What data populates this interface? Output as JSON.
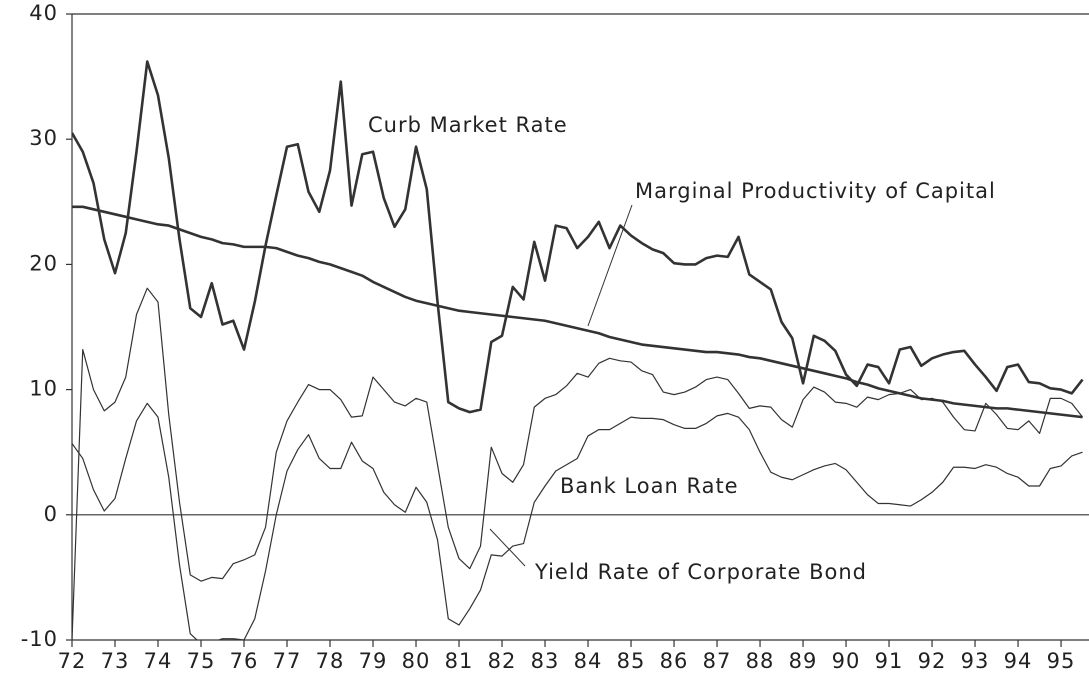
{
  "chart_data": {
    "type": "line",
    "x": [
      72,
      72.25,
      72.5,
      72.75,
      73,
      73.25,
      73.5,
      73.75,
      74,
      74.25,
      74.5,
      74.75,
      75,
      75.25,
      75.5,
      75.75,
      76,
      76.25,
      76.5,
      76.75,
      77,
      77.25,
      77.5,
      77.75,
      78,
      78.25,
      78.5,
      78.75,
      79,
      79.25,
      79.5,
      79.75,
      80,
      80.25,
      80.5,
      80.75,
      81,
      81.25,
      81.5,
      81.75,
      82,
      82.25,
      82.5,
      82.75,
      83,
      83.25,
      83.5,
      83.75,
      84,
      84.25,
      84.5,
      84.75,
      85,
      85.25,
      85.5,
      85.75,
      86,
      86.25,
      86.5,
      86.75,
      87,
      87.25,
      87.5,
      87.75,
      88,
      88.25,
      88.5,
      88.75,
      89,
      89.25,
      89.5,
      89.75,
      90,
      90.25,
      90.5,
      90.75,
      91,
      91.25,
      91.5,
      91.75,
      92,
      92.25,
      92.5,
      92.75,
      93,
      93.25,
      93.5,
      93.75,
      94,
      94.25,
      94.5,
      94.75,
      95,
      95.25,
      95.5
    ],
    "series": [
      {
        "name": "Curb Market Rate",
        "color": "#333333",
        "values": [
          30.5,
          29,
          26.5,
          22,
          19.3,
          22.5,
          29,
          36.2,
          33.5,
          28.5,
          22,
          16.5,
          15.8,
          18.5,
          15.2,
          15.5,
          13.2,
          17,
          21.5,
          25.5,
          29.4,
          29.6,
          25.8,
          24.2,
          27.5,
          34.6,
          24.7,
          28.8,
          29,
          25.3,
          23,
          24.4,
          29.4,
          26,
          17,
          9,
          8.5,
          8.2,
          8.4,
          13.8,
          14.3,
          18.2,
          17.2,
          21.8,
          18.7,
          23.1,
          22.9,
          21.3,
          22.2,
          23.4,
          21.3,
          23.1,
          22.3,
          21.7,
          21.2,
          20.9,
          20.1,
          20,
          20,
          20.5,
          20.7,
          20.6,
          22.2,
          19.2,
          18.6,
          18,
          15.4,
          14.1,
          10.5,
          14.3,
          13.9,
          13.1,
          11.2,
          10.3,
          12,
          11.8,
          10.5,
          13.2,
          13.4,
          11.9,
          12.5,
          12.8,
          13,
          13.1,
          12,
          11,
          9.9,
          11.8,
          12,
          10.6,
          10.5,
          10.1,
          10,
          9.7,
          10.8
        ]
      },
      {
        "name": "Marginal Productivity of Capital",
        "color": "#333333",
        "values": [
          24.6,
          24.6,
          24.4,
          24.2,
          24,
          23.8,
          23.6,
          23.4,
          23.2,
          23.1,
          22.8,
          22.5,
          22.2,
          22,
          21.7,
          21.6,
          21.4,
          21.4,
          21.4,
          21.3,
          21,
          20.7,
          20.5,
          20.2,
          20,
          19.7,
          19.4,
          19.1,
          18.6,
          18.2,
          17.8,
          17.4,
          17.1,
          16.9,
          16.7,
          16.5,
          16.3,
          16.2,
          16.1,
          16,
          15.9,
          15.8,
          15.7,
          15.6,
          15.5,
          15.3,
          15.1,
          14.9,
          14.7,
          14.5,
          14.2,
          14,
          13.8,
          13.6,
          13.5,
          13.4,
          13.3,
          13.2,
          13.1,
          13,
          13,
          12.9,
          12.8,
          12.6,
          12.5,
          12.3,
          12.1,
          11.9,
          11.7,
          11.5,
          11.3,
          11.1,
          10.9,
          10.6,
          10.4,
          10.1,
          9.9,
          9.7,
          9.5,
          9.3,
          9.2,
          9.1,
          8.9,
          8.8,
          8.7,
          8.6,
          8.5,
          8.5,
          8.4,
          8.3,
          8.2,
          8.1,
          8,
          7.9,
          7.8
        ]
      },
      {
        "name": "Bank Loan Rate",
        "color": "#333333",
        "values": [
          5.7,
          4.5,
          2,
          0.3,
          1.3,
          4.5,
          7.5,
          8.9,
          7.8,
          3,
          -4,
          -9.5,
          -10.3,
          -10.2,
          -9.9,
          -9.9,
          -10,
          -8.3,
          -4.5,
          0,
          3.5,
          5.2,
          6.4,
          4.5,
          3.7,
          3.7,
          5.8,
          4.3,
          3.7,
          1.8,
          0.8,
          0.2,
          2.2,
          1,
          -2,
          -8.3,
          -8.8,
          -7.5,
          -6,
          -3.2,
          -3.3,
          -2.5,
          -2.3,
          1,
          2.3,
          3.5,
          4,
          4.5,
          6.3,
          6.8,
          6.8,
          7.3,
          7.8,
          7.7,
          7.7,
          7.6,
          7.2,
          6.9,
          6.9,
          7.3,
          7.9,
          8.1,
          7.8,
          6.8,
          5,
          3.4,
          3,
          2.8,
          3.2,
          3.6,
          3.9,
          4.1,
          3.6,
          2.6,
          1.6,
          0.9,
          0.9,
          0.8,
          0.7,
          1.2,
          1.8,
          2.6,
          3.8,
          3.8,
          3.7,
          4,
          3.8,
          3.3,
          3,
          2.3,
          2.3,
          3.7,
          3.9,
          4.7,
          5
        ]
      },
      {
        "name": "Yield Rate of Corporate Bond",
        "color": "#333333",
        "values": [
          -10,
          13.2,
          10,
          8.3,
          9,
          11,
          16,
          18.1,
          17,
          8,
          1,
          -4.8,
          -5.3,
          -5,
          -5.1,
          -3.9,
          -3.6,
          -3.2,
          -1,
          5,
          7.5,
          9,
          10.4,
          10,
          10,
          9.2,
          7.8,
          7.9,
          11,
          10,
          9,
          8.7,
          9.3,
          9,
          4,
          -1,
          -3.5,
          -4.3,
          -2.5,
          5.4,
          3.3,
          2.6,
          4,
          8.6,
          9.3,
          9.6,
          10.3,
          11.3,
          11,
          12.1,
          12.5,
          12.3,
          12.2,
          11.5,
          11.2,
          9.8,
          9.6,
          9.8,
          10.2,
          10.8,
          11,
          10.8,
          9.7,
          8.5,
          8.7,
          8.6,
          7.6,
          7,
          9.2,
          10.2,
          9.8,
          9,
          8.9,
          8.6,
          9.4,
          9.2,
          9.6,
          9.7,
          10,
          9.2,
          9.3,
          9,
          7.8,
          6.8,
          6.7,
          8.9,
          8,
          6.9,
          6.8,
          7.5,
          6.5,
          9.3,
          9.3,
          8.9,
          7.8
        ]
      }
    ],
    "xlim": [
      72,
      95.65
    ],
    "xticks": [
      72,
      73,
      74,
      75,
      76,
      77,
      78,
      79,
      80,
      81,
      82,
      83,
      84,
      85,
      86,
      87,
      88,
      89,
      90,
      91,
      92,
      93,
      94,
      95
    ],
    "ylim": [
      -10,
      40
    ],
    "yticks": [
      -10,
      0,
      10,
      20,
      30,
      40
    ],
    "grid": false
  }
}
